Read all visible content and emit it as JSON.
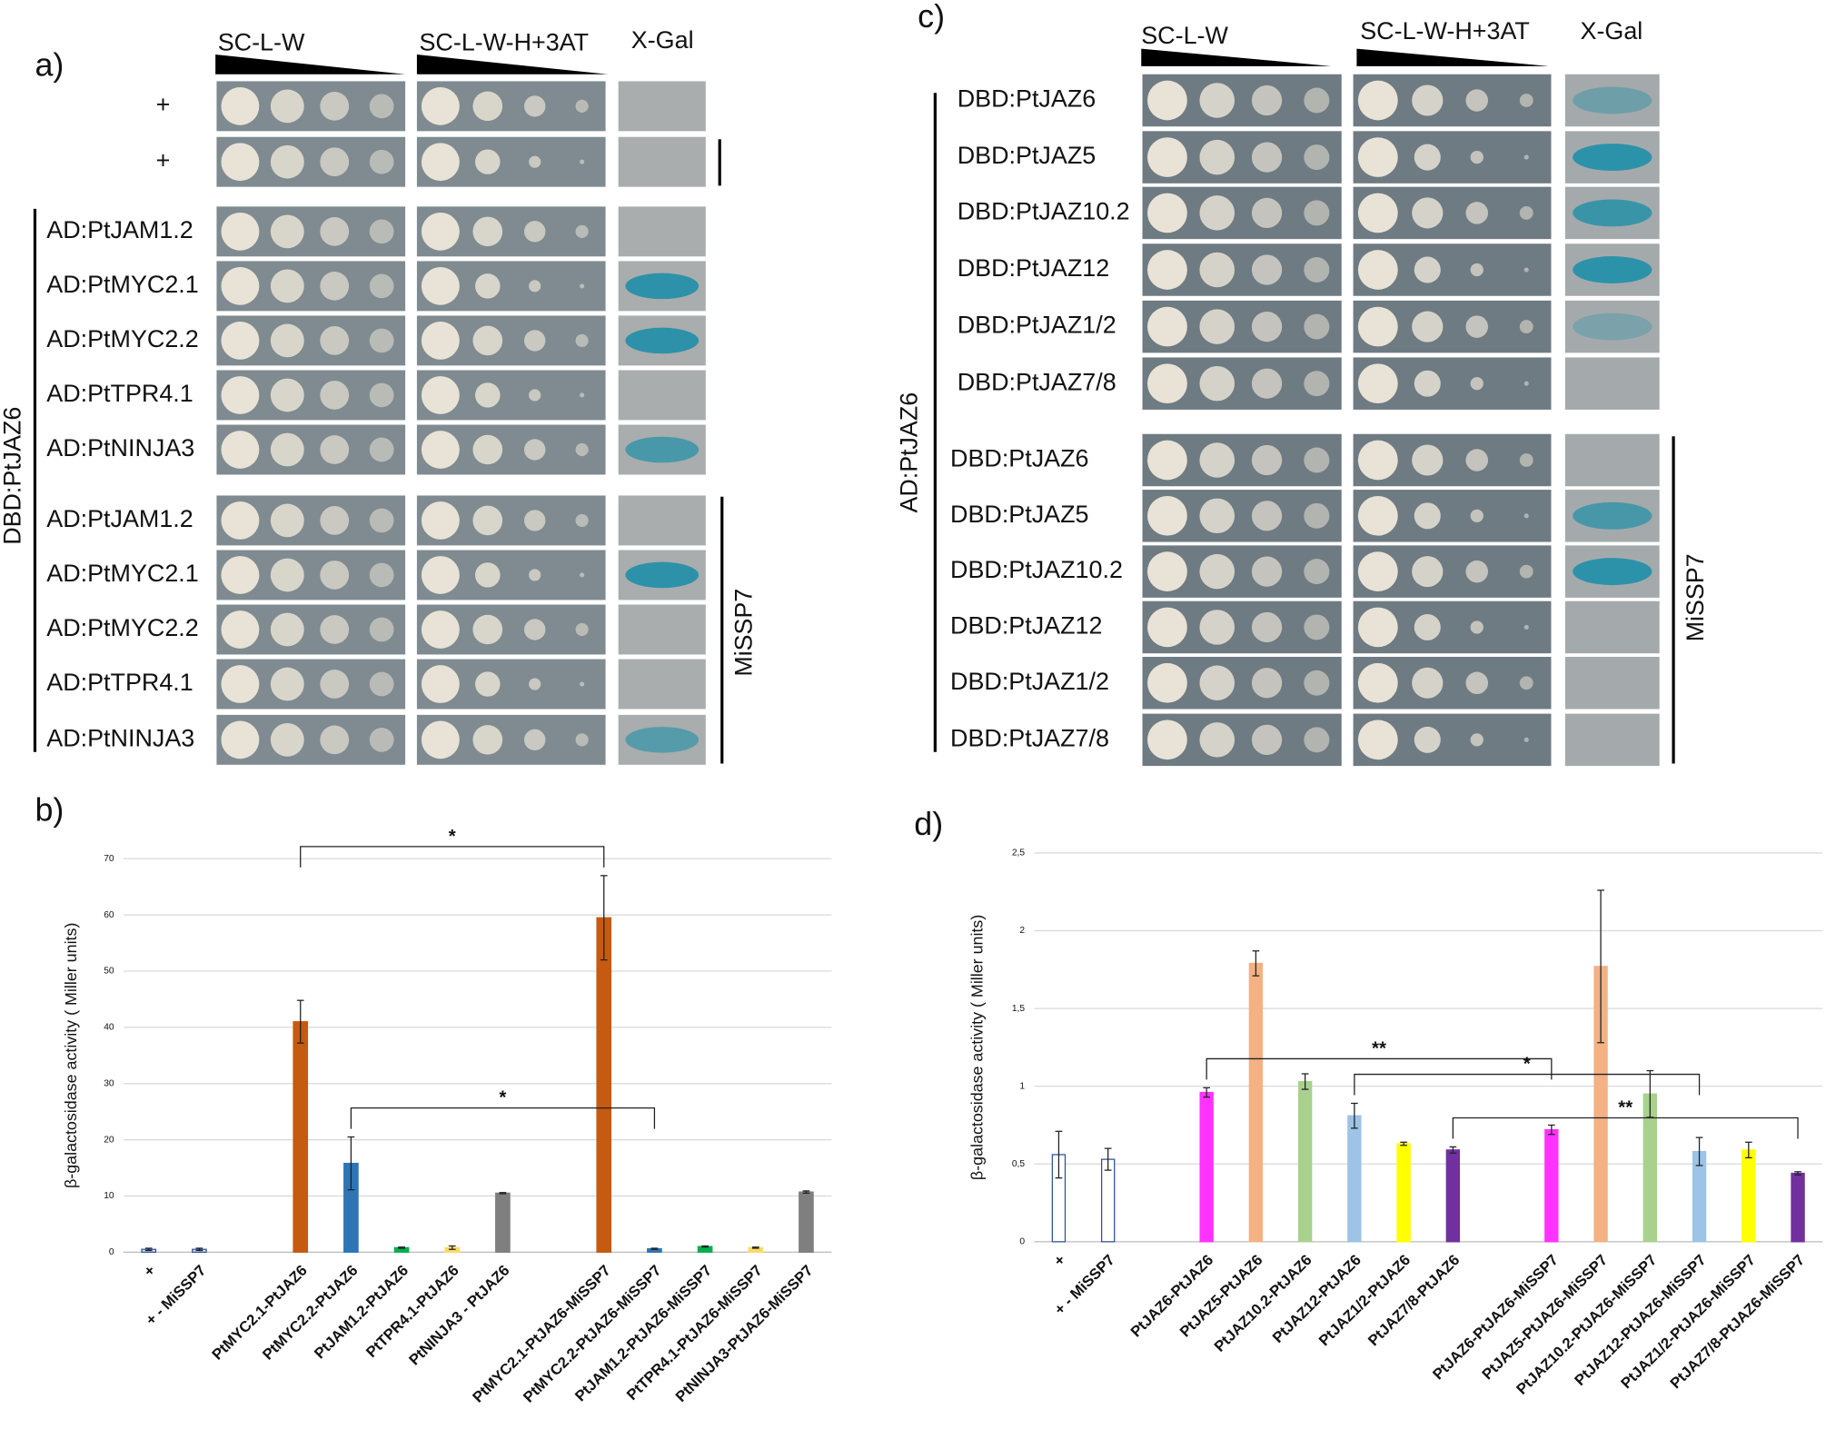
{
  "panels": [
    {
      "label": "a)",
      "columns": [
        "SC-L-W",
        "SC-L-W-H+3AT",
        "X-Gal"
      ],
      "controls": [
        "+",
        "+"
      ],
      "side_label": "DBD:PtJAZ6",
      "groups": [
        {
          "rows": [
            "AD:PtJAM1.2",
            "AD:PtMYC2.1",
            "AD:PtMYC2.2",
            "AD:PtTPR4.1",
            "AD:PtNINJA3"
          ]
        },
        {
          "rows": [
            "AD:PtJAM1.2",
            "AD:PtMYC2.1",
            "AD:PtMYC2.2",
            "AD:PtTPR4.1",
            "AD:PtNINJA3"
          ],
          "label": "MiSSP7"
        }
      ]
    },
    {
      "label": "c)",
      "columns": [
        "SC-L-W",
        "SC-L-W-H+3AT",
        "X-Gal"
      ],
      "side_label": "AD:PtJAZ6",
      "groups": [
        {
          "rows": [
            "DBD:PtJAZ6",
            "DBD:PtJAZ5",
            "DBD:PtJAZ10.2",
            "DBD:PtJAZ12",
            "DBD:PtJAZ1/2",
            "DBD:PtJAZ7/8"
          ]
        },
        {
          "rows": [
            "DBD:PtJAZ6",
            "DBD:PtJAZ5",
            "DBD:PtJAZ10.2",
            "DBD:PtJAZ12",
            "DBD:PtJAZ1/2",
            "DBD:PtJAZ7/8"
          ],
          "label": "MiSSP7"
        }
      ]
    }
  ],
  "chart_data": [
    {
      "type": "bar",
      "label": "b)",
      "y_label": "β-galactosidase activity ( Miller units)",
      "categories": [
        "+",
        "+ - MiSSP7",
        null,
        "PtMYC2.1-PtJAZ6",
        "PtMYC2.2-PtJAZ6",
        "PtJAM1.2-PtJAZ6",
        "PtTPR4.1-PtJAZ6",
        "PtNINJA3 - PtJAZ6",
        null,
        "PtMYC2.1-PtJAZ6-MiSSP7",
        "PtMYC2.2-PtJAZ6-MiSSP7",
        "PtJAM1.2-PtJAZ6-MiSSP7",
        "PtTPR4.1-PtJAZ6-MiSSP7",
        "PtNINJA3-PtJAZ6-MiSSP7"
      ],
      "values": [
        0.5,
        0.5,
        null,
        41,
        15.8,
        0.8,
        0.8,
        10.5,
        null,
        59.5,
        0.6,
        1.0,
        0.8,
        10.7
      ],
      "errors": [
        0.2,
        0.2,
        null,
        3.8,
        4.7,
        0.1,
        0.3,
        0.1,
        null,
        7.5,
        0.1,
        0.1,
        0.1,
        0.2
      ],
      "colors": [
        "#dfe7f3",
        "#dfe7f3",
        null,
        "#c55a11",
        "#2e75b6",
        "#00b050",
        "#ffd966",
        "#7f7f7f",
        null,
        "#c55a11",
        "#2e75b6",
        "#00b050",
        "#ffd966",
        "#7f7f7f"
      ],
      "ylim": [
        0,
        70
      ],
      "yticks": [
        0,
        10,
        20,
        30,
        40,
        50,
        60,
        70
      ],
      "grid": true,
      "brackets": [
        {
          "text": "*",
          "between": [
            3,
            9
          ]
        },
        {
          "text": "*",
          "between": [
            4,
            10
          ]
        }
      ]
    },
    {
      "type": "bar",
      "label": "d)",
      "y_label": "β-galactosidase activity ( Miller units)",
      "categories": [
        "+",
        "+ - MiSSP7",
        null,
        "PtJAZ6-PtJAZ6",
        "PtJAZ5-PtJAZ6",
        "PtJAZ10.2-PtJAZ6",
        "PtJAZ12-PtJAZ6",
        "PtJAZ1/2-PtJAZ6",
        "PtJAZ7/8-PtJAZ6",
        null,
        "PtJAZ6-PtJAZ6-MiSSP7",
        "PtJAZ5-PtJAZ6-MiSSP7",
        "PtJAZ10.2-PtJAZ6-MiSSP7",
        "PtJAZ12-PtJAZ6-MiSSP7",
        "PtJAZ1/2-PtJAZ6-MiSSP7",
        "PtJAZ7/8-PtJAZ6-MiSSP7"
      ],
      "values": [
        0.56,
        0.53,
        null,
        0.96,
        1.79,
        1.03,
        0.81,
        0.63,
        0.59,
        null,
        0.72,
        1.77,
        0.95,
        0.58,
        0.59,
        0.44
      ],
      "errors": [
        0.15,
        0.07,
        null,
        0.03,
        0.08,
        0.05,
        0.08,
        0.01,
        0.02,
        null,
        0.03,
        0.49,
        0.15,
        0.09,
        0.05,
        0.01
      ],
      "colors": [
        "#ffffff",
        "#ffffff",
        null,
        "#ff33ff",
        "#f4b183",
        "#a9d18e",
        "#9dc3e6",
        "#ffff00",
        "#7030a0",
        null,
        "#ff33ff",
        "#f4b183",
        "#a9d18e",
        "#9dc3e6",
        "#ffff00",
        "#7030a0"
      ],
      "ylim": [
        0,
        2.5
      ],
      "yticks": [
        0,
        {
          "value": 0.5,
          "label": "0,5"
        },
        1,
        {
          "value": 1.5,
          "label": "1,5"
        },
        2,
        {
          "value": 2.5,
          "label": "2,5"
        }
      ],
      "grid": true,
      "brackets": [
        {
          "text": "**",
          "between": [
            3,
            10
          ]
        },
        {
          "text": "*",
          "between": [
            6,
            13
          ]
        },
        {
          "text": "**",
          "between": [
            8,
            15
          ]
        }
      ]
    }
  ]
}
